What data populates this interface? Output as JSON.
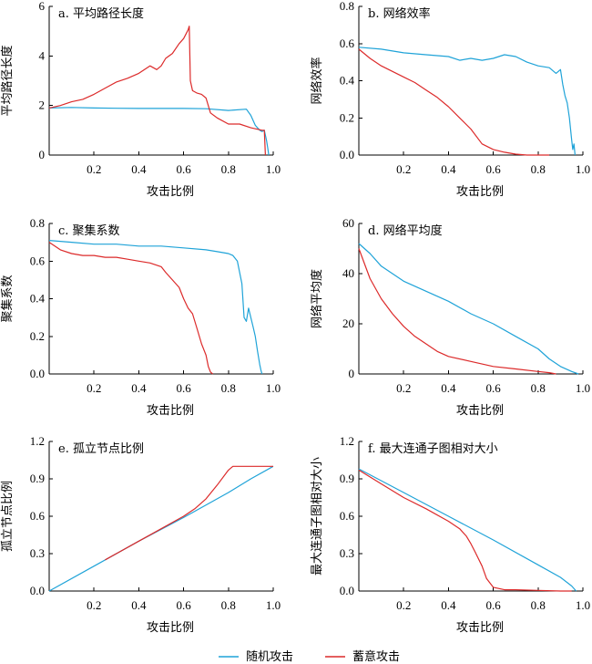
{
  "colors": {
    "random": "#1fa3d8",
    "targeted": "#dc2a2a"
  },
  "legend": {
    "random": "随机攻击",
    "targeted": "蓄意攻击"
  },
  "chart_data": [
    {
      "type": "line",
      "panel": "a",
      "title": "a. 平均路径长度",
      "xlabel": "攻击比例",
      "ylabel": "平均路径长度",
      "xlim": [
        0,
        1
      ],
      "ylim": [
        0,
        6
      ],
      "xticks": [
        0.2,
        0.4,
        0.6,
        0.8,
        1.0
      ],
      "xtick_labels": [
        "0.2",
        "0.4",
        "0.6",
        "0.8",
        "1.0"
      ],
      "yticks": [
        0,
        2,
        4,
        6
      ],
      "ytick_labels": [
        "0",
        "2",
        "4",
        "6"
      ],
      "series": [
        {
          "key": "random",
          "name": "随机攻击",
          "x": [
            0,
            0.1,
            0.2,
            0.3,
            0.4,
            0.5,
            0.6,
            0.7,
            0.8,
            0.88,
            0.9,
            0.92,
            0.94,
            0.95,
            0.96,
            0.97,
            0.975,
            0.98
          ],
          "y": [
            1.9,
            1.92,
            1.9,
            1.89,
            1.88,
            1.88,
            1.88,
            1.87,
            1.8,
            1.85,
            1.6,
            1.2,
            1.0,
            0.95,
            1.0,
            0.6,
            0.3,
            0
          ]
        },
        {
          "key": "targeted",
          "name": "蓄意攻击",
          "x": [
            0,
            0.05,
            0.1,
            0.15,
            0.2,
            0.25,
            0.3,
            0.35,
            0.4,
            0.45,
            0.48,
            0.5,
            0.52,
            0.55,
            0.58,
            0.6,
            0.62,
            0.625,
            0.63,
            0.64,
            0.66,
            0.68,
            0.7,
            0.72,
            0.75,
            0.8,
            0.85,
            0.9,
            0.95,
            0.96,
            0.965
          ],
          "y": [
            1.9,
            2.0,
            2.15,
            2.25,
            2.45,
            2.7,
            2.95,
            3.1,
            3.3,
            3.6,
            3.45,
            3.6,
            3.9,
            4.1,
            4.5,
            4.7,
            5.05,
            5.2,
            3.0,
            2.6,
            2.5,
            2.45,
            2.3,
            1.7,
            1.5,
            1.25,
            1.25,
            1.1,
            1.0,
            1.0,
            0
          ]
        }
      ]
    },
    {
      "type": "line",
      "panel": "b",
      "title": "b. 网络效率",
      "xlabel": "攻击比例",
      "ylabel": "网络效率",
      "xlim": [
        0,
        1
      ],
      "ylim": [
        0,
        0.8
      ],
      "xticks": [
        0.2,
        0.4,
        0.6,
        0.8,
        1.0
      ],
      "xtick_labels": [
        "0.2",
        "0.4",
        "0.6",
        "0.8",
        "1.0"
      ],
      "yticks": [
        0,
        0.2,
        0.4,
        0.6,
        0.8
      ],
      "ytick_labels": [
        "0.0",
        "0.2",
        "0.4",
        "0.6",
        "0.8"
      ],
      "series": [
        {
          "key": "random",
          "name": "随机攻击",
          "x": [
            0,
            0.1,
            0.2,
            0.3,
            0.4,
            0.45,
            0.5,
            0.55,
            0.6,
            0.65,
            0.7,
            0.75,
            0.8,
            0.85,
            0.87,
            0.88,
            0.9,
            0.91,
            0.92,
            0.93,
            0.94,
            0.95,
            0.955,
            0.96,
            0.965
          ],
          "y": [
            0.58,
            0.57,
            0.55,
            0.54,
            0.53,
            0.51,
            0.52,
            0.51,
            0.52,
            0.54,
            0.53,
            0.5,
            0.48,
            0.47,
            0.45,
            0.44,
            0.46,
            0.38,
            0.32,
            0.28,
            0.2,
            0.08,
            0.03,
            0.06,
            0
          ]
        },
        {
          "key": "targeted",
          "name": "蓄意攻击",
          "x": [
            0,
            0.05,
            0.1,
            0.15,
            0.2,
            0.25,
            0.3,
            0.35,
            0.4,
            0.45,
            0.5,
            0.55,
            0.6,
            0.65,
            0.7,
            0.75,
            0.8,
            0.85
          ],
          "y": [
            0.57,
            0.52,
            0.48,
            0.45,
            0.42,
            0.39,
            0.35,
            0.31,
            0.26,
            0.2,
            0.14,
            0.06,
            0.03,
            0.015,
            0.005,
            0,
            0,
            0
          ]
        }
      ]
    },
    {
      "type": "line",
      "panel": "c",
      "title": "c. 聚集系数",
      "xlabel": "攻击比例",
      "ylabel": "聚集系数",
      "xlim": [
        0,
        1
      ],
      "ylim": [
        0,
        0.8
      ],
      "xticks": [
        0.2,
        0.4,
        0.6,
        0.8,
        1.0
      ],
      "xtick_labels": [
        "0.2",
        "0.4",
        "0.6",
        "0.8",
        "1.0"
      ],
      "yticks": [
        0,
        0.2,
        0.4,
        0.6,
        0.8
      ],
      "ytick_labels": [
        "0.0",
        "0.2",
        "0.4",
        "0.6",
        "0.8"
      ],
      "series": [
        {
          "key": "random",
          "name": "随机攻击",
          "x": [
            0,
            0.1,
            0.2,
            0.3,
            0.4,
            0.5,
            0.6,
            0.7,
            0.75,
            0.8,
            0.82,
            0.84,
            0.86,
            0.87,
            0.88,
            0.89,
            0.9,
            0.91,
            0.92,
            0.93,
            0.94,
            0.945,
            0.95
          ],
          "y": [
            0.71,
            0.7,
            0.69,
            0.69,
            0.68,
            0.68,
            0.67,
            0.66,
            0.65,
            0.64,
            0.63,
            0.6,
            0.48,
            0.3,
            0.28,
            0.35,
            0.3,
            0.25,
            0.2,
            0.12,
            0.05,
            0.02,
            0
          ]
        },
        {
          "key": "targeted",
          "name": "蓄意攻击",
          "x": [
            0,
            0.05,
            0.1,
            0.15,
            0.2,
            0.25,
            0.3,
            0.35,
            0.4,
            0.45,
            0.5,
            0.52,
            0.55,
            0.58,
            0.6,
            0.62,
            0.64,
            0.66,
            0.68,
            0.7,
            0.71,
            0.72,
            0.73
          ],
          "y": [
            0.7,
            0.66,
            0.64,
            0.63,
            0.63,
            0.62,
            0.62,
            0.61,
            0.6,
            0.59,
            0.57,
            0.54,
            0.5,
            0.46,
            0.4,
            0.35,
            0.32,
            0.24,
            0.16,
            0.1,
            0.04,
            0.01,
            0
          ]
        }
      ]
    },
    {
      "type": "line",
      "panel": "d",
      "title": "d. 网络平均度",
      "xlabel": "攻击比例",
      "ylabel": "网络平均度",
      "xlim": [
        0,
        1
      ],
      "ylim": [
        0,
        60
      ],
      "xticks": [
        0.2,
        0.4,
        0.6,
        0.8,
        1.0
      ],
      "xtick_labels": [
        "0.2",
        "0.4",
        "0.6",
        "0.8",
        "1.0"
      ],
      "yticks": [
        0,
        20,
        40,
        60
      ],
      "ytick_labels": [
        "0",
        "20",
        "40",
        "60"
      ],
      "series": [
        {
          "key": "random",
          "name": "随机攻击",
          "x": [
            0,
            0.05,
            0.1,
            0.15,
            0.2,
            0.3,
            0.4,
            0.5,
            0.6,
            0.7,
            0.8,
            0.85,
            0.9,
            0.95,
            0.98
          ],
          "y": [
            52,
            48,
            43,
            40,
            37,
            33,
            29,
            24,
            20,
            15,
            10,
            6,
            3,
            1,
            0
          ]
        },
        {
          "key": "targeted",
          "name": "蓄意攻击",
          "x": [
            0,
            0.05,
            0.1,
            0.15,
            0.2,
            0.25,
            0.3,
            0.35,
            0.4,
            0.5,
            0.6,
            0.7,
            0.8,
            0.85,
            0.88
          ],
          "y": [
            50,
            38,
            30,
            24,
            19,
            15,
            12,
            9,
            7,
            5,
            3,
            2,
            1,
            0.5,
            0
          ]
        }
      ]
    },
    {
      "type": "line",
      "panel": "e",
      "title": "e. 孤立节点比例",
      "xlabel": "攻击比例",
      "ylabel": "孤立节点比例",
      "xlim": [
        0,
        1
      ],
      "ylim": [
        0,
        1.2
      ],
      "xticks": [
        0.2,
        0.4,
        0.6,
        0.8,
        1.0
      ],
      "xtick_labels": [
        "0.2",
        "0.4",
        "0.6",
        "0.8",
        "1.0"
      ],
      "yticks": [
        0,
        0.3,
        0.6,
        0.9,
        1.2
      ],
      "ytick_labels": [
        "0.0",
        "0.3",
        "0.6",
        "0.9",
        "1.2"
      ],
      "series": [
        {
          "key": "random",
          "name": "随机攻击",
          "x": [
            0,
            0.2,
            0.4,
            0.6,
            0.8,
            0.9,
            1.0
          ],
          "y": [
            0,
            0.2,
            0.4,
            0.59,
            0.79,
            0.9,
            1.0
          ]
        },
        {
          "key": "targeted",
          "name": "蓄意攻击",
          "x": [
            0.25,
            0.4,
            0.5,
            0.6,
            0.65,
            0.7,
            0.75,
            0.8,
            0.82,
            1.0
          ],
          "y": [
            0.25,
            0.4,
            0.5,
            0.6,
            0.66,
            0.74,
            0.85,
            0.97,
            1.0,
            1.0
          ]
        }
      ]
    },
    {
      "type": "line",
      "panel": "f",
      "title": "f. 最大连通子图相对大小",
      "xlabel": "攻击比例",
      "ylabel": "最大连通子图相对大小",
      "xlim": [
        0,
        1
      ],
      "ylim": [
        0,
        1.2
      ],
      "xticks": [
        0.2,
        0.4,
        0.6,
        0.8,
        1.0
      ],
      "xtick_labels": [
        "0.2",
        "0.4",
        "0.6",
        "0.8",
        "1.0"
      ],
      "yticks": [
        0,
        0.3,
        0.6,
        0.9,
        1.2
      ],
      "ytick_labels": [
        "0.0",
        "0.3",
        "0.6",
        "0.9",
        "1.2"
      ],
      "series": [
        {
          "key": "random",
          "name": "随机攻击",
          "x": [
            0,
            0.2,
            0.4,
            0.6,
            0.8,
            0.9,
            0.95,
            0.97
          ],
          "y": [
            0.98,
            0.79,
            0.6,
            0.41,
            0.21,
            0.11,
            0.04,
            0
          ]
        },
        {
          "key": "targeted",
          "name": "蓄意攻击",
          "x": [
            0,
            0.1,
            0.2,
            0.3,
            0.4,
            0.45,
            0.48,
            0.5,
            0.52,
            0.55,
            0.57,
            0.6,
            0.65,
            0.7,
            0.8,
            0.9,
            0.95
          ],
          "y": [
            0.97,
            0.86,
            0.75,
            0.66,
            0.56,
            0.5,
            0.44,
            0.38,
            0.31,
            0.2,
            0.1,
            0.03,
            0.01,
            0.01,
            0.005,
            0,
            0
          ]
        }
      ]
    }
  ]
}
